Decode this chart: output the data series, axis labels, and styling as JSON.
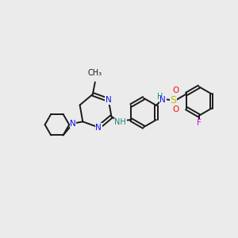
{
  "background_color": "#ebebeb",
  "bond_color": "#1a1a1a",
  "bond_lw": 1.4,
  "atom_colors": {
    "N_pyr": "#1010ee",
    "N_sul": "#1a8080",
    "N_pip": "#1010ee",
    "O": "#ee1010",
    "F": "#dd00dd",
    "S": "#bbbb00",
    "C": "#1a1a1a",
    "H_label": "#1a8080"
  },
  "font_size": 7.5,
  "fig_width": 3.0,
  "fig_height": 3.0,
  "dpi": 100,
  "xlim": [
    0,
    10
  ],
  "ylim": [
    0,
    10
  ]
}
